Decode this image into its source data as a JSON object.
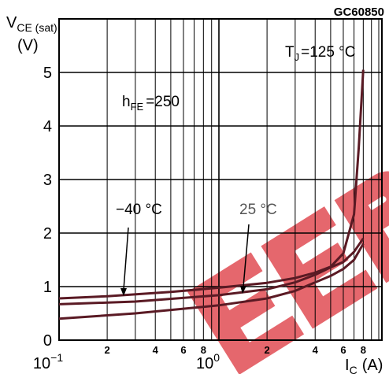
{
  "header": {
    "code": "GC60850"
  },
  "chart_data": {
    "type": "line",
    "x_scale": "log",
    "xlim": [
      0.1,
      10
    ],
    "ylim": [
      0,
      6
    ],
    "ylabel_main": "V",
    "ylabel_sub": "CE (sat)",
    "yunit": "(V)",
    "xlabel_main": "I",
    "xlabel_sub": "C",
    "xunit": "(A)",
    "y_ticks": [
      0,
      1,
      2,
      3,
      4,
      5
    ],
    "x_major_ticks": [
      {
        "value": 0.1,
        "base": "10",
        "exp": "−1"
      },
      {
        "value": 1,
        "base": "10",
        "exp": "0"
      }
    ],
    "x_minor_labels": [
      {
        "value": 0.2,
        "label": "2"
      },
      {
        "value": 0.4,
        "label": "4"
      },
      {
        "value": 0.6,
        "label": "6"
      },
      {
        "value": 0.8,
        "label": "8"
      },
      {
        "value": 2,
        "label": "2"
      },
      {
        "value": 4,
        "label": "4"
      },
      {
        "value": 6,
        "label": "6"
      },
      {
        "value": 8,
        "label": "8"
      }
    ],
    "grid": true,
    "annotations": {
      "temp_main": "T",
      "temp_sub": "J",
      "temp_value": "=125 °C",
      "hfe_main": "h",
      "hfe_sub": "FE",
      "hfe_value": "=250",
      "minus40": "−40 °C",
      "plus25": "25 °C"
    },
    "series": [
      {
        "x": [
          0.1,
          0.2,
          0.5,
          1,
          2,
          3,
          4,
          5,
          6,
          7,
          7.5,
          8
        ],
        "y": [
          0.78,
          0.82,
          0.9,
          0.98,
          1.07,
          1.16,
          1.26,
          1.37,
          1.62,
          2.35,
          3.6,
          5.05
        ]
      },
      {
        "x": [
          0.1,
          0.3,
          1,
          2,
          3,
          4,
          5,
          6,
          7,
          8
        ],
        "y": [
          0.67,
          0.72,
          0.84,
          0.95,
          1.08,
          1.22,
          1.36,
          1.46,
          1.65,
          1.9
        ]
      },
      {
        "x": [
          0.1,
          0.3,
          1,
          2,
          3,
          4,
          5,
          6,
          7,
          8
        ],
        "y": [
          0.4,
          0.5,
          0.65,
          0.78,
          0.92,
          1.08,
          1.2,
          1.33,
          1.5,
          1.8
        ]
      }
    ],
    "colors": {
      "curve": "#5a1a24",
      "grid": "#000000",
      "watermark": "#e0464e"
    }
  }
}
